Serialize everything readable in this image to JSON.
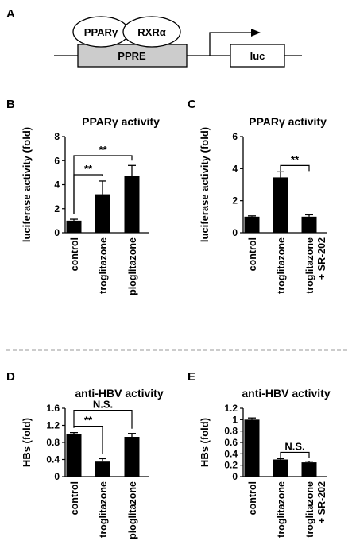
{
  "panels": {
    "a": "A",
    "b": "B",
    "c": "C",
    "d": "D",
    "e": "E"
  },
  "schematic": {
    "receptor1": "PPARγ",
    "receptor2": "RXRα",
    "element": "PPRE",
    "reporter": "luc"
  },
  "chart_data": [
    {
      "type": "bar",
      "title": "PPARγ activity",
      "ylabel": "luciferase activity (fold)",
      "ylim": [
        0,
        8
      ],
      "yticks": [
        "0",
        "2",
        "4",
        "6",
        "8"
      ],
      "tick_values": [
        0,
        2,
        4,
        6,
        8
      ],
      "categories": [
        [
          "control"
        ],
        [
          "troglitazone"
        ],
        [
          "pioglitazone"
        ]
      ],
      "values": [
        1.0,
        3.2,
        4.7
      ],
      "errors": [
        0.12,
        1.1,
        0.9
      ],
      "comparisons": [
        {
          "from": 0,
          "to": 1,
          "label": "**"
        },
        {
          "from": 0,
          "to": 2,
          "label": "**"
        }
      ]
    },
    {
      "type": "bar",
      "title": "PPARγ activity",
      "ylabel": "luciferase activity (fold)",
      "ylim": [
        0,
        6
      ],
      "yticks": [
        "0",
        "2",
        "4",
        "6"
      ],
      "tick_values": [
        0,
        2,
        4,
        6
      ],
      "categories": [
        [
          "control"
        ],
        [
          "troglitazone"
        ],
        [
          "troglitazone",
          "+ SR-202"
        ]
      ],
      "values": [
        1.0,
        3.45,
        1.0
      ],
      "errors": [
        0.05,
        0.35,
        0.12
      ],
      "comparisons": [
        {
          "from": 1,
          "to": 2,
          "label": "**"
        }
      ]
    },
    {
      "type": "bar",
      "title": "anti-HBV activity",
      "ylabel": "HBs (fold)",
      "ylim": [
        0,
        1.6
      ],
      "yticks": [
        "0",
        "0.4",
        "0.8",
        "1.2",
        "1.6"
      ],
      "tick_values": [
        0,
        0.4,
        0.8,
        1.2,
        1.6
      ],
      "categories": [
        [
          "control"
        ],
        [
          "troglitazone"
        ],
        [
          "pioglitazone"
        ]
      ],
      "values": [
        1.0,
        0.35,
        0.93
      ],
      "errors": [
        0.03,
        0.07,
        0.08
      ],
      "comparisons": [
        {
          "from": 0,
          "to": 1,
          "label": "**"
        },
        {
          "from": 0,
          "to": 2,
          "label": "N.S."
        }
      ]
    },
    {
      "type": "bar",
      "title": "anti-HBV activity",
      "ylabel": "HBs (fold)",
      "ylim": [
        0,
        1.2
      ],
      "yticks": [
        "0",
        "0.2",
        "0.4",
        "0.6",
        "0.8",
        "1",
        "1.2"
      ],
      "tick_values": [
        0,
        0.2,
        0.4,
        0.6,
        0.8,
        1,
        1.2
      ],
      "categories": [
        [
          "control"
        ],
        [
          "troglitazone"
        ],
        [
          "troglitazone",
          "+ SR-202"
        ]
      ],
      "values": [
        1.0,
        0.3,
        0.25
      ],
      "errors": [
        0.03,
        0.015,
        0.02
      ],
      "comparisons": [
        {
          "from": 1,
          "to": 2,
          "label": "N.S."
        }
      ]
    }
  ]
}
